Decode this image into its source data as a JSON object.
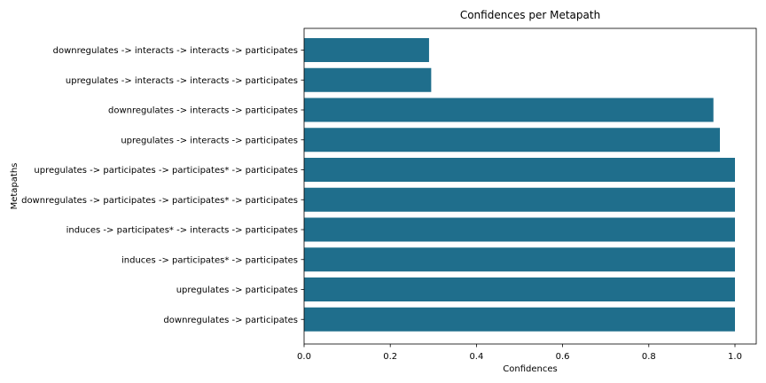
{
  "chart_data": {
    "type": "bar",
    "orientation": "horizontal",
    "title": "Confidences per Metapath",
    "xlabel": "Confidences",
    "ylabel": "Metapaths",
    "xlim": [
      0,
      1.05
    ],
    "xticks": [
      "0.0",
      "0.2",
      "0.4",
      "0.6",
      "0.8",
      "1.0"
    ],
    "xtick_values": [
      0,
      0.2,
      0.4,
      0.6,
      0.8,
      1.0
    ],
    "grid": false,
    "bar_color": "#1f6e8c",
    "categories": [
      "downregulates -> interacts -> interacts -> participates",
      "upregulates -> interacts -> interacts -> participates",
      "downregulates -> interacts -> participates",
      "upregulates -> interacts -> participates",
      "upregulates -> participates -> participates* -> participates",
      "downregulates -> participates -> participates* -> participates",
      "induces -> participates* -> interacts -> participates",
      "induces -> participates* -> participates",
      "upregulates -> participates",
      "downregulates -> participates"
    ],
    "values": [
      0.29,
      0.295,
      0.95,
      0.965,
      1.0,
      1.0,
      1.0,
      1.0,
      1.0,
      1.0
    ]
  }
}
